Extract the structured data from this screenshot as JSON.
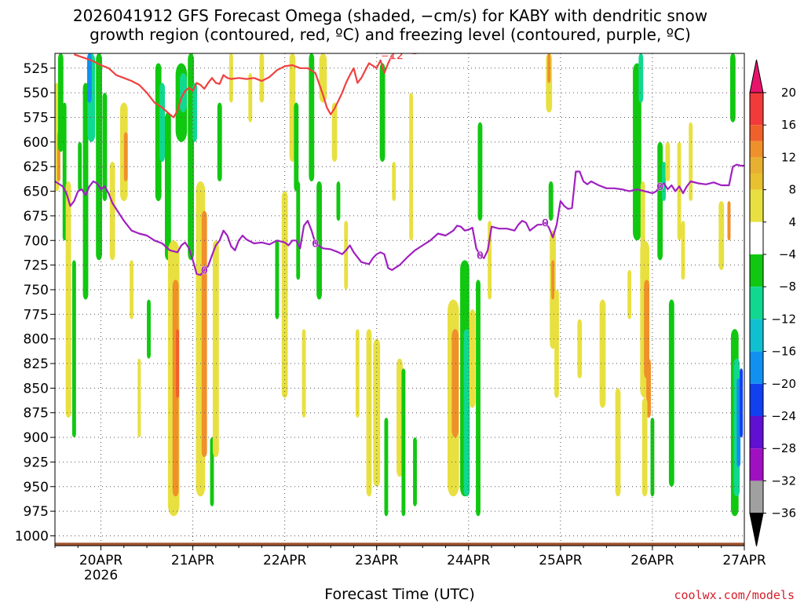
{
  "title": {
    "line1": "2026041912 GFS Forecast Omega (shaded, −cm/s) for KABY with dendritic snow",
    "line2": "growth region (contoured, red, ºC) and freezing level (contoured, purple, ºC)"
  },
  "credit": "coolwx.com/models",
  "chart_data": {
    "type": "heatmap",
    "title": "2026041912 GFS Forecast Omega (shaded, −cm/s) for KABY with dendritic snow growth region (contoured, red, ºC) and freezing level (contoured, purple, ºC)",
    "xlabel": "Forecast Time (UTC)",
    "ylabel": "",
    "x_unit": "hours after 2026-04-19 12Z",
    "xlim": [
      0,
      180
    ],
    "ylim": [
      1010,
      510
    ],
    "y_ticks": [
      525,
      550,
      575,
      600,
      625,
      650,
      675,
      700,
      725,
      750,
      775,
      800,
      825,
      850,
      875,
      900,
      925,
      950,
      975,
      1000
    ],
    "x_ticks": [
      {
        "x": 12,
        "label": "20APR",
        "sublabel": "2026"
      },
      {
        "x": 36,
        "label": "21APR",
        "sublabel": ""
      },
      {
        "x": 60,
        "label": "22APR",
        "sublabel": ""
      },
      {
        "x": 84,
        "label": "23APR",
        "sublabel": ""
      },
      {
        "x": 108,
        "label": "24APR",
        "sublabel": ""
      },
      {
        "x": 132,
        "label": "25APR",
        "sublabel": ""
      },
      {
        "x": 156,
        "label": "26APR",
        "sublabel": ""
      },
      {
        "x": 180,
        "label": "27APR",
        "sublabel": ""
      }
    ],
    "grid": true,
    "colorbar": {
      "labels": [
        "20",
        "16",
        "12",
        "8",
        "4",
        "−4",
        "−8",
        "−12",
        "−16",
        "−20",
        "−24",
        "−28",
        "−32",
        "−36"
      ],
      "bounds": [
        20,
        16,
        12,
        8,
        4,
        -4,
        -8,
        -12,
        -16,
        -20,
        -24,
        -28,
        -32,
        -36
      ],
      "colors": [
        "#e8146c",
        "#f23a3a",
        "#f0602a",
        "#f0902a",
        "#e8c030",
        "#e8e040",
        "#ffffff",
        "#10c810",
        "#10d890",
        "#10c0d0",
        "#1090f0",
        "#1040f0",
        "#6010d0",
        "#a010c0",
        "#a0a0a0",
        "#000000"
      ]
    },
    "series": [
      {
        "name": "freezing level (0°C)",
        "color": "#a020c0",
        "label": "0",
        "x": [
          0,
          2,
          3,
          4,
          5,
          6,
          7,
          8,
          9,
          10,
          11,
          12,
          13,
          14,
          15,
          16,
          18,
          20,
          22,
          24,
          26,
          28,
          30,
          32,
          33,
          34,
          35,
          36,
          37,
          38,
          39,
          40,
          41,
          42,
          43,
          44,
          45,
          46,
          47,
          48,
          49,
          50,
          52,
          54,
          56,
          58,
          60,
          61,
          62,
          63,
          64,
          65,
          66,
          67,
          68,
          70,
          72,
          74,
          75,
          76,
          77,
          78,
          80,
          82,
          83,
          84,
          85,
          86,
          87,
          88,
          90,
          92,
          94,
          96,
          98,
          100,
          102,
          104,
          105,
          106,
          107,
          108,
          109,
          110,
          111,
          112,
          113,
          114,
          116,
          118,
          120,
          121,
          122,
          123,
          124,
          125,
          126,
          127,
          128,
          129,
          130,
          131,
          132,
          133,
          134,
          135,
          136,
          137,
          138,
          139,
          140,
          142,
          144,
          146,
          148,
          150,
          152,
          154,
          156,
          157,
          158,
          159,
          160,
          161,
          162,
          163,
          164,
          165,
          166,
          168,
          170,
          172,
          174,
          176,
          177,
          178,
          179,
          180
        ],
        "y": [
          640,
          645,
          652,
          665,
          660,
          650,
          648,
          654,
          645,
          640,
          642,
          648,
          645,
          652,
          662,
          668,
          680,
          690,
          693,
          695,
          700,
          703,
          710,
          712,
          705,
          702,
          708,
          720,
          734,
          735,
          730,
          726,
          715,
          705,
          700,
          690,
          695,
          706,
          710,
          700,
          695,
          699,
          703,
          702,
          704,
          700,
          702,
          705,
          700,
          700,
          708,
          685,
          680,
          690,
          703,
          708,
          709,
          712,
          714,
          710,
          705,
          712,
          722,
          724,
          718,
          714,
          712,
          714,
          728,
          730,
          725,
          717,
          710,
          705,
          700,
          693,
          695,
          690,
          685,
          686,
          690,
          689,
          687,
          708,
          715,
          718,
          710,
          686,
          688,
          688,
          690,
          684,
          680,
          682,
          690,
          687,
          684,
          684,
          682,
          687,
          697,
          684,
          660,
          665,
          668,
          667,
          630,
          630,
          640,
          643,
          640,
          644,
          647,
          647,
          648,
          650,
          648,
          650,
          652,
          650,
          645,
          642,
          648,
          644,
          650,
          645,
          652,
          645,
          640,
          642,
          643,
          641,
          644,
          644,
          625,
          623,
          624,
          624
        ]
      },
      {
        "name": "dendritic snow growth region (−12°C)",
        "color": "#f04040",
        "label": "−12",
        "x": [
          5,
          8,
          10,
          12,
          14,
          16,
          18,
          20,
          22,
          24,
          26,
          28,
          30,
          31,
          32,
          33,
          34,
          35,
          36,
          37,
          38,
          39,
          40,
          41,
          42,
          43,
          44,
          45,
          46,
          48,
          50,
          52,
          54,
          56,
          58,
          60,
          62,
          64,
          66,
          68,
          70,
          71,
          72,
          73,
          74,
          75,
          76,
          77,
          78,
          79,
          80,
          82,
          84,
          85,
          86,
          87,
          88,
          89,
          90,
          92,
          94,
          96
        ],
        "y": [
          511,
          515,
          518,
          522,
          525,
          532,
          535,
          538,
          542,
          550,
          560,
          565,
          572,
          575,
          568,
          555,
          548,
          545,
          548,
          540,
          542,
          546,
          540,
          535,
          540,
          541,
          532,
          535,
          536,
          535,
          536,
          535,
          538,
          534,
          527,
          523,
          522,
          525,
          525,
          530,
          552,
          565,
          572,
          566,
          558,
          550,
          540,
          532,
          525,
          540,
          535,
          520,
          525,
          517,
          530,
          520,
          512,
          508,
          506,
          509,
          510,
          508
        ]
      }
    ]
  }
}
